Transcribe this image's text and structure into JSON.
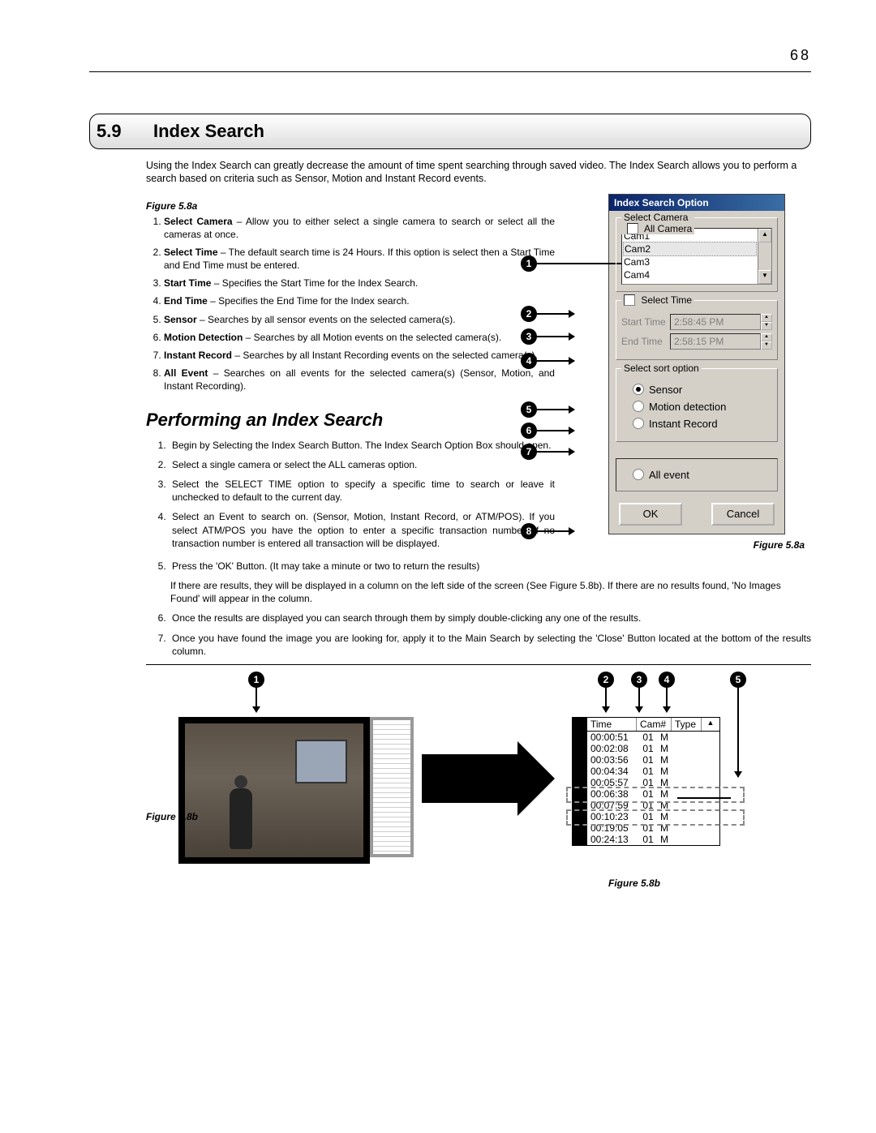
{
  "page_number": "68",
  "section_number": "5.9",
  "section_title": "Index Search",
  "intro_text": "Using the Index Search can greatly decrease the amount of time spent searching through saved video. The Index Search allows you to perform a search based on criteria such as Sensor, Motion and Instant Record events.",
  "figure_8a_label": "Figure 5.8a",
  "figure_8b_label": "Figure 5.8b",
  "subheading": "Performing an Index Search",
  "definitions": [
    {
      "term": "Select Camera",
      "text": " – Allow you to either select a single camera to search or select all the cameras at once."
    },
    {
      "term": "Select Time",
      "text": " – The default search time is 24 Hours.  If this option is select then a Start Time and End Time must be entered."
    },
    {
      "term": "Start Time",
      "text": " – Specifies the Start Time for the Index Search."
    },
    {
      "term": "End Time",
      "text": " – Specifies the End Time for the Index search."
    },
    {
      "term": "Sensor",
      "text": " – Searches by all sensor events on the selected camera(s)."
    },
    {
      "term": "Motion Detection",
      "text": " – Searches by all Motion events on the selected camera(s)."
    },
    {
      "term": "Instant Record",
      "text": " – Searches by all Instant Recording events on the selected camera(s)."
    },
    {
      "term": "All Event",
      "text": " – Searches on all events for the selected camera(s) (Sensor, Motion, and Instant Recording)."
    }
  ],
  "steps_top": [
    "Begin by Selecting the Index Search Button. The Index Search Option Box should open.",
    "Select a single camera or select the ALL cameras option.",
    "Select the SELECT TIME option to specify a specific time to search or leave it unchecked to default to the current day.",
    "Select an Event to search on. (Sensor, Motion, Instant Record, or ATM/POS). If you select ATM/POS you have the option to enter a specific transaction number. If no transaction number is entered all transaction will be displayed."
  ],
  "steps_full": [
    "Press the 'OK' Button. (It may take a minute or two to return the results)",
    "If there are results, they will be displayed in a column on the left side of the screen (See Figure 5.8b). If there are no results found, 'No Images Found' will appear in the column.",
    "Once the results are displayed you can search through them by simply double-clicking any one of the results.",
    "Once you have found the image you are looking for, apply it to the Main Search by selecting the 'Close' Button located at the bottom of the results column."
  ],
  "dialog": {
    "title": "Index Search Option",
    "select_camera_label": "Select Camera",
    "all_camera_label": "All Camera",
    "cameras": [
      "Cam1",
      "Cam2",
      "Cam3",
      "Cam4"
    ],
    "select_time_label": "Select Time",
    "start_time_label": "Start Time",
    "start_time_value": "2:58:45 PM",
    "end_time_label": "End Time",
    "end_time_value": "2:58:15 PM",
    "sort_legend": "Select sort option",
    "sensor_label": "Sensor",
    "motion_label": "Motion detection",
    "instant_label": "Instant Record",
    "all_event_label": "All event",
    "ok_label": "OK",
    "cancel_label": "Cancel"
  },
  "results_table": {
    "headers": [
      "Time",
      "Cam#",
      "Type"
    ],
    "rows": [
      [
        "00:00:51",
        "01",
        "M"
      ],
      [
        "00:02:08",
        "01",
        "M"
      ],
      [
        "00:03:56",
        "01",
        "M"
      ],
      [
        "00:04:34",
        "01",
        "M"
      ],
      [
        "00:05:57",
        "01",
        "M"
      ],
      [
        "00:06:38",
        "01",
        "M"
      ],
      [
        "00:07:59",
        "01",
        "M"
      ],
      [
        "00:10:23",
        "01",
        "M"
      ],
      [
        "00:19:05",
        "01",
        "M"
      ],
      [
        "00:24:13",
        "01",
        "M"
      ]
    ]
  },
  "callout_numbers": [
    "1",
    "2",
    "3",
    "4",
    "5",
    "6",
    "7",
    "8"
  ],
  "bottom_callouts": [
    "1",
    "2",
    "3",
    "4",
    "5"
  ],
  "colors": {
    "titlebar_start": "#0a246a",
    "titlebar_end": "#3a6ea5",
    "dialog_bg": "#d4d0c8"
  }
}
